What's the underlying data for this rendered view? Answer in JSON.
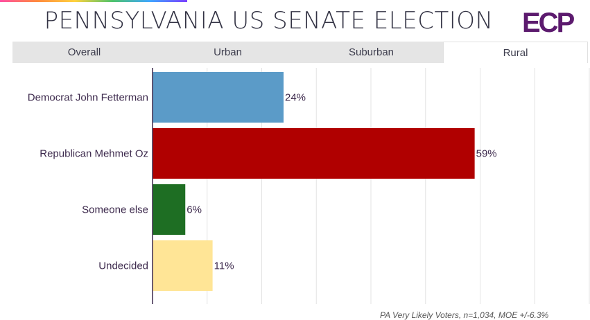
{
  "header": {
    "title": "PENNSYLVANIA US SENATE ELECTION",
    "logo_text": "ECP"
  },
  "tabs": [
    {
      "label": "Overall",
      "active": false
    },
    {
      "label": "Urban",
      "active": false
    },
    {
      "label": "Suburban",
      "active": false
    },
    {
      "label": "Rural",
      "active": true
    }
  ],
  "footnote": "PA Very Likely Voters, n=1,034, MOE +/-6.3%",
  "colors": {
    "logo": "#5c1a6e",
    "accent_gradient": [
      "#ff4fa3",
      "#ff8a3d",
      "#ffd23f",
      "#4fc36b",
      "#3fa7ff",
      "#7a3fff"
    ]
  },
  "chart_data": {
    "type": "bar",
    "orientation": "horizontal",
    "categories": [
      "Democrat John Fetterman",
      "Republican Mehmet Oz",
      "Someone else",
      "Undecided"
    ],
    "values": [
      24,
      59,
      6,
      11
    ],
    "value_labels": [
      "24%",
      "59%",
      "6%",
      "11%"
    ],
    "colors": [
      "#5b9bc8",
      "#b00000",
      "#1e6e23",
      "#ffe596"
    ],
    "xlim": [
      0,
      80
    ],
    "grid": true
  }
}
